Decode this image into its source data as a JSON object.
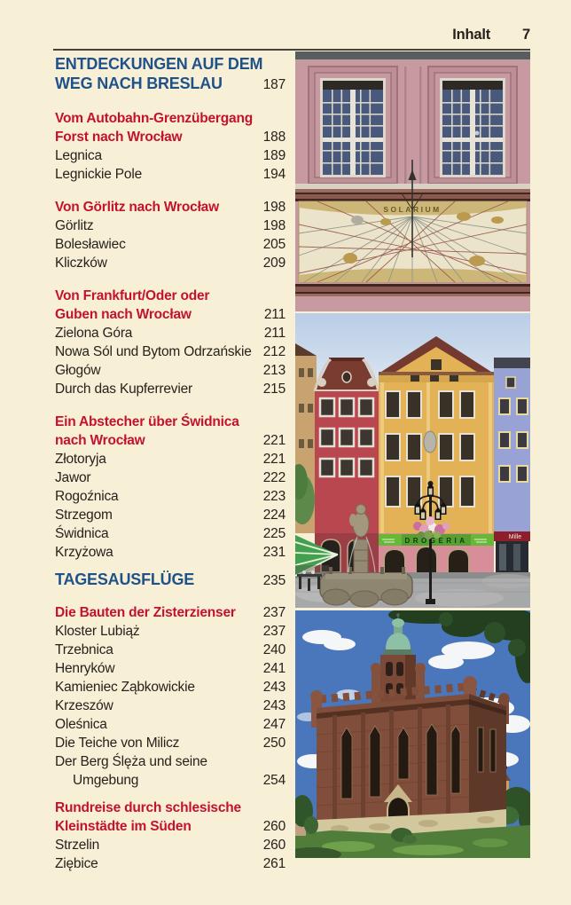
{
  "header": {
    "title": "Inhalt",
    "page_number": "7"
  },
  "colors": {
    "background": "#f8efd7",
    "chapter_blue": "#20528a",
    "section_red": "#c31230",
    "text": "#26221c",
    "rule": "#46423a"
  },
  "toc": [
    {
      "kind": "chapter",
      "rows": [
        {
          "text": "ENTDECKUNGEN AUF DEM",
          "page": ""
        },
        {
          "text": "WEG NACH BRESLAU",
          "page": "187"
        }
      ]
    },
    {
      "kind": "group",
      "rows": [
        {
          "style": "red",
          "text": "Vom Autobahn-Grenzübergang",
          "page": ""
        },
        {
          "style": "red",
          "text": "Forst nach Wrocław",
          "page": "188"
        },
        {
          "style": "plain",
          "text": "Legnica",
          "page": "189"
        },
        {
          "style": "plain",
          "text": "Legnickie Pole",
          "page": "194"
        }
      ]
    },
    {
      "kind": "group",
      "rows": [
        {
          "style": "red",
          "text": "Von Görlitz nach Wrocław",
          "page": "198"
        },
        {
          "style": "plain",
          "text": "Görlitz",
          "page": "198"
        },
        {
          "style": "plain",
          "text": "Bolesławiec",
          "page": "205"
        },
        {
          "style": "plain",
          "text": "Kliczków",
          "page": "209"
        }
      ]
    },
    {
      "kind": "group",
      "rows": [
        {
          "style": "red",
          "text": "Von Frankfurt/Oder oder",
          "page": ""
        },
        {
          "style": "red",
          "text": "Guben nach Wrocław",
          "page": "211"
        },
        {
          "style": "plain",
          "text": "Zielona Góra",
          "page": "211"
        },
        {
          "style": "plain",
          "text": "Nowa Sól und Bytom Odrzańskie",
          "page": "212"
        },
        {
          "style": "plain",
          "text": "Głogów",
          "page": "213"
        },
        {
          "style": "plain",
          "text": "Durch das Kupferrevier",
          "page": "215"
        }
      ]
    },
    {
      "kind": "group",
      "rows": [
        {
          "style": "red",
          "text": "Ein Abstecher über Świdnica",
          "page": ""
        },
        {
          "style": "red",
          "text": "nach Wrocław",
          "page": "221"
        },
        {
          "style": "plain",
          "text": "Złotoryja",
          "page": "221"
        },
        {
          "style": "plain",
          "text": "Jawor",
          "page": "222"
        },
        {
          "style": "plain",
          "text": "Rogoźnica",
          "page": "223"
        },
        {
          "style": "plain",
          "text": "Strzegom",
          "page": "224"
        },
        {
          "style": "plain",
          "text": "Świdnica",
          "page": "225"
        },
        {
          "style": "plain",
          "text": "Krzyżowa",
          "page": "231"
        }
      ]
    },
    {
      "kind": "chapter",
      "rows": [
        {
          "text": "TAGESAUSFLÜGE",
          "page": "235"
        }
      ]
    },
    {
      "kind": "group",
      "rows": [
        {
          "style": "red",
          "text": "Die Bauten der Zisterzienser",
          "page": "237"
        },
        {
          "style": "plain",
          "text": "Kloster Lubiąż",
          "page": "237"
        },
        {
          "style": "plain",
          "text": "Trzebnica",
          "page": "240"
        },
        {
          "style": "plain",
          "text": "Henryków",
          "page": "241"
        },
        {
          "style": "plain",
          "text": "Kamieniec Ząbkowickie",
          "page": "243"
        },
        {
          "style": "plain",
          "text": "Krzeszów",
          "page": "243"
        },
        {
          "style": "plain",
          "text": "Oleśnica",
          "page": "247"
        },
        {
          "style": "plain",
          "text": "Die Teiche von Milicz",
          "page": "250"
        },
        {
          "style": "plain",
          "text": "Der Berg Ślęża und seine",
          "page": ""
        },
        {
          "style": "plain",
          "indent": true,
          "text": "Umgebung",
          "page": "254"
        }
      ]
    },
    {
      "kind": "group",
      "rows": [
        {
          "style": "red",
          "text": "Rundreise durch schlesische",
          "page": ""
        },
        {
          "style": "red",
          "text": "Kleinstädte im Süden",
          "page": "260"
        },
        {
          "style": "plain",
          "text": "Strzelin",
          "page": "260"
        },
        {
          "style": "plain",
          "text": "Ziębice",
          "page": "261"
        }
      ]
    }
  ],
  "photos": {
    "sundial_facade": {
      "sign_text": "SOLARIUM"
    },
    "market_square": {
      "shop_sign_text": "DROGERIA",
      "bank_sign_text": "Mille"
    }
  }
}
